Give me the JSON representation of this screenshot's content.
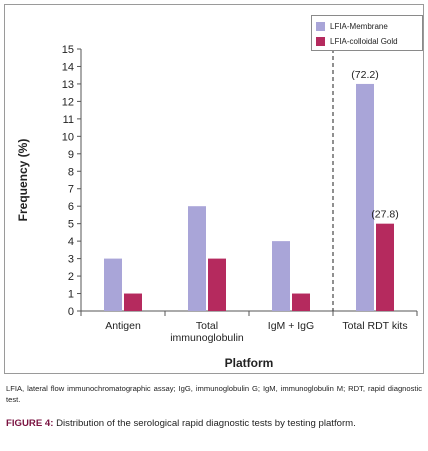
{
  "chart_data": {
    "type": "bar",
    "categories": [
      "Antigen",
      "Total\nimmunoglobulin",
      "IgM + IgG",
      "Total RDT kits"
    ],
    "series": [
      {
        "name": "LFIA-Membrane",
        "values": [
          3,
          6,
          4,
          13
        ],
        "color": "#a9a5d8"
      },
      {
        "name": "LFIA-colloidal Gold",
        "values": [
          1,
          3,
          1,
          5
        ],
        "color": "#b52a5e"
      }
    ],
    "data_labels": [
      {
        "category": "Total RDT kits",
        "series": "LFIA-Membrane",
        "text": "(72.2)"
      },
      {
        "category": "Total RDT kits",
        "series": "LFIA-colloidal Gold",
        "text": "(27.8)"
      }
    ],
    "xlabel": "Platform",
    "ylabel": "Frequency (%)",
    "ylim": [
      0,
      15
    ],
    "yticks": [
      0,
      1,
      2,
      3,
      4,
      5,
      6,
      7,
      8,
      9,
      10,
      11,
      12,
      13,
      14,
      15
    ],
    "grid": false,
    "legend_position": "top-right",
    "separator": "dashed line before Total RDT kits"
  },
  "caption": {
    "abbreviations": "LFIA, lateral flow immunochromatographic assay; IgG, immunoglobulin G; IgM, immunoglobulin M; RDT, rapid diagnostic test.",
    "figure_label": "FIGURE 4:",
    "figure_title": "Distribution of the serological rapid diagnostic tests by testing platform."
  }
}
